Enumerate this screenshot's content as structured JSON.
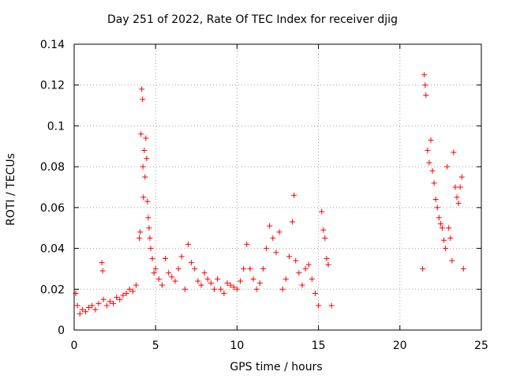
{
  "chart_data": {
    "type": "scatter",
    "title": "Day 251 of 2022, Rate Of TEC Index for receiver djig",
    "xlabel": "GPS time / hours",
    "ylabel": "ROTI / TECUs",
    "xlim": [
      0,
      25
    ],
    "ylim": [
      0,
      0.14
    ],
    "xticks": [
      0,
      5,
      10,
      15,
      20,
      25
    ],
    "yticks": [
      0,
      0.02,
      0.04,
      0.06,
      0.08,
      0.1,
      0.12,
      0.14
    ],
    "xtick_labels": [
      "0",
      "5",
      "10",
      "15",
      "20",
      "25"
    ],
    "ytick_labels": [
      "0",
      "0.02",
      "0.04",
      "0.06",
      "0.08",
      "0.1",
      "0.12",
      "0.14"
    ],
    "grid": true,
    "marker": "+",
    "color": "#ff0000",
    "series": [
      {
        "x": [
          0.1,
          0.2,
          0.35,
          0.5,
          0.7,
          0.9,
          1.1,
          1.3,
          1.5,
          1.7,
          1.75,
          1.8,
          2.0,
          2.2,
          2.4,
          2.6,
          2.8,
          3.0,
          3.2,
          3.4,
          3.6,
          3.8,
          4.0,
          4.05,
          4.1,
          4.15,
          4.2,
          4.22,
          4.25,
          4.3,
          4.35,
          4.4,
          4.45,
          4.5,
          4.55,
          4.6,
          4.65,
          4.7,
          4.8,
          4.9,
          5.0,
          5.2,
          5.4,
          5.6,
          5.8,
          6.0,
          6.2,
          6.4,
          6.6,
          6.8,
          7.0,
          7.2,
          7.4,
          7.6,
          7.8,
          8.0,
          8.2,
          8.4,
          8.6,
          8.8,
          9.0,
          9.2,
          9.4,
          9.6,
          9.8,
          10.0,
          10.2,
          10.4,
          10.6,
          10.8,
          11.0,
          11.2,
          11.4,
          11.6,
          11.8,
          12.0,
          12.2,
          12.4,
          12.6,
          12.8,
          13.0,
          13.2,
          13.4,
          13.5,
          13.6,
          13.8,
          14.0,
          14.2,
          14.4,
          14.6,
          14.8,
          15.0,
          15.2,
          15.3,
          15.4,
          15.5,
          15.6,
          15.8,
          21.4,
          21.5,
          21.55,
          21.6,
          21.7,
          21.8,
          21.9,
          22.0,
          22.1,
          22.2,
          22.3,
          22.4,
          22.5,
          22.6,
          22.7,
          22.8,
          22.9,
          23.0,
          23.1,
          23.2,
          23.3,
          23.4,
          23.5,
          23.6,
          23.7,
          23.8,
          23.9
        ],
        "y": [
          0.018,
          0.012,
          0.008,
          0.01,
          0.009,
          0.011,
          0.012,
          0.01,
          0.013,
          0.033,
          0.029,
          0.015,
          0.012,
          0.014,
          0.013,
          0.016,
          0.015,
          0.017,
          0.018,
          0.02,
          0.019,
          0.022,
          0.045,
          0.048,
          0.096,
          0.118,
          0.113,
          0.08,
          0.065,
          0.088,
          0.075,
          0.094,
          0.084,
          0.063,
          0.055,
          0.05,
          0.045,
          0.04,
          0.035,
          0.028,
          0.03,
          0.025,
          0.022,
          0.035,
          0.028,
          0.026,
          0.024,
          0.03,
          0.036,
          0.02,
          0.042,
          0.033,
          0.03,
          0.024,
          0.022,
          0.028,
          0.025,
          0.023,
          0.02,
          0.025,
          0.02,
          0.018,
          0.023,
          0.022,
          0.021,
          0.02,
          0.024,
          0.03,
          0.042,
          0.03,
          0.025,
          0.02,
          0.023,
          0.03,
          0.04,
          0.051,
          0.045,
          0.038,
          0.048,
          0.02,
          0.025,
          0.036,
          0.053,
          0.066,
          0.034,
          0.028,
          0.022,
          0.03,
          0.032,
          0.025,
          0.018,
          0.012,
          0.058,
          0.049,
          0.045,
          0.035,
          0.032,
          0.012,
          0.03,
          0.125,
          0.12,
          0.115,
          0.088,
          0.082,
          0.093,
          0.078,
          0.072,
          0.064,
          0.06,
          0.055,
          0.052,
          0.05,
          0.044,
          0.04,
          0.08,
          0.05,
          0.045,
          0.034,
          0.087,
          0.07,
          0.065,
          0.062,
          0.07,
          0.075,
          0.03
        ]
      }
    ]
  }
}
